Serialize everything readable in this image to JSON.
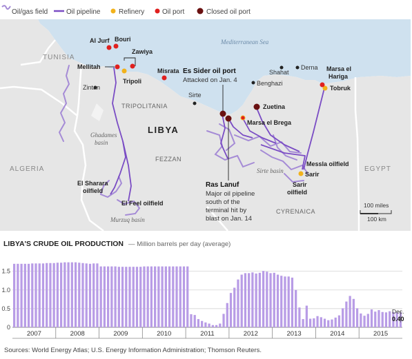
{
  "legend": {
    "items": [
      {
        "key": "field",
        "label": "Oil/gas field",
        "color": "#a58bd6"
      },
      {
        "key": "pipeline",
        "label": "Oil pipeline",
        "color": "#7a4cc4"
      },
      {
        "key": "refinery",
        "label": "Refinery",
        "color": "#f2b21b"
      },
      {
        "key": "port",
        "label": "Oil port",
        "color": "#e0201f"
      },
      {
        "key": "closed",
        "label": "Closed oil port",
        "color": "#6a1111"
      }
    ]
  },
  "map": {
    "sea_label": "Mediterranean Sea",
    "countries": {
      "libya": "LIBYA",
      "tunisia": "TUNISIA",
      "algeria": "ALGERIA",
      "egypt": "EGYPT"
    },
    "regions": {
      "tripolitania": "TRIPOLITANIA",
      "fezzan": "FEZZAN",
      "cyrenaica": "CYRENAICA"
    },
    "basins": {
      "ghadames_1": "Ghadames",
      "ghadames_2": "basin",
      "murzuq": "Murzuq basin",
      "sirte": "Sirte basin"
    },
    "cities": [
      "Zintan",
      "Sirte",
      "Shahat",
      "Derna",
      "Benghazi"
    ],
    "ports": {
      "al_jurf": "Al Jurf",
      "bouri": "Bouri",
      "zawiya": "Zawiya",
      "mellitah": "Mellitah",
      "tripoli": "Tripoli",
      "misrata": "Misrata",
      "zuetina": "Zuetina",
      "marsa_brega": "Marsa el Brega",
      "marsa_hariga_1": "Marsa el",
      "marsa_hariga_2": "Hariga",
      "tobruk": "Tobruk"
    },
    "fields": {
      "messla": "Messla oilfield",
      "sarir": "Sarir",
      "sarir_oil_1": "Sarir",
      "sarir_oil_2": "oilfield",
      "sharara_1": "El Sharara",
      "sharara_2": "oilfield",
      "feel": "El Feel oilfield"
    },
    "es_sider": {
      "title": "Es Sider oil port",
      "note": "Attacked on Jan. 4"
    },
    "ras_lanuf": {
      "title": "Ras Lanuf",
      "note_lines": [
        "Major oil pipeline",
        "south of the",
        "terminal hit by",
        "blast on Jan. 14"
      ]
    },
    "scale": {
      "miles": "100 miles",
      "km": "100 km"
    }
  },
  "chart": {
    "title": "LIBYA'S CRUDE OIL PRODUCTION",
    "subtitle": "— Million barrels per day (average)",
    "annotation_month": "Dec.",
    "annotation_value": "0.40"
  },
  "chart_data": {
    "type": "bar",
    "title": "LIBYA'S CRUDE OIL PRODUCTION",
    "ylabel": "Million barrels per day (average)",
    "ylim": [
      0,
      1.9
    ],
    "yticks": [
      "0",
      "0.5",
      "1.0",
      "1.5"
    ],
    "x_start": "2007-01",
    "x_end": "2015-12",
    "x_labels": [
      "2007",
      "2008",
      "2009",
      "2010",
      "2011",
      "2012",
      "2013",
      "2014",
      "2015"
    ],
    "values": [
      1.7,
      1.7,
      1.7,
      1.7,
      1.7,
      1.71,
      1.71,
      1.71,
      1.71,
      1.72,
      1.72,
      1.72,
      1.73,
      1.73,
      1.74,
      1.74,
      1.74,
      1.74,
      1.73,
      1.72,
      1.71,
      1.7,
      1.71,
      1.71,
      1.63,
      1.63,
      1.63,
      1.63,
      1.63,
      1.62,
      1.62,
      1.62,
      1.62,
      1.62,
      1.62,
      1.62,
      1.63,
      1.63,
      1.63,
      1.63,
      1.63,
      1.63,
      1.63,
      1.63,
      1.63,
      1.63,
      1.63,
      1.63,
      1.63,
      0.35,
      0.33,
      0.22,
      0.17,
      0.13,
      0.1,
      0.06,
      0.06,
      0.1,
      0.36,
      0.65,
      0.92,
      1.06,
      1.28,
      1.41,
      1.45,
      1.45,
      1.47,
      1.44,
      1.46,
      1.51,
      1.49,
      1.45,
      1.46,
      1.41,
      1.38,
      1.36,
      1.36,
      1.33,
      1.0,
      0.53,
      0.22,
      0.58,
      0.23,
      0.24,
      0.3,
      0.27,
      0.23,
      0.19,
      0.21,
      0.26,
      0.32,
      0.51,
      0.69,
      0.84,
      0.76,
      0.51,
      0.37,
      0.31,
      0.36,
      0.48,
      0.42,
      0.46,
      0.41,
      0.4,
      0.43,
      0.41,
      0.4,
      0.4
    ],
    "annotation": {
      "label": "Dec.",
      "value": 0.4
    }
  },
  "footer": "Sources: World Energy Atlas; U.S. Energy Information Administration; Thomson Reuters."
}
